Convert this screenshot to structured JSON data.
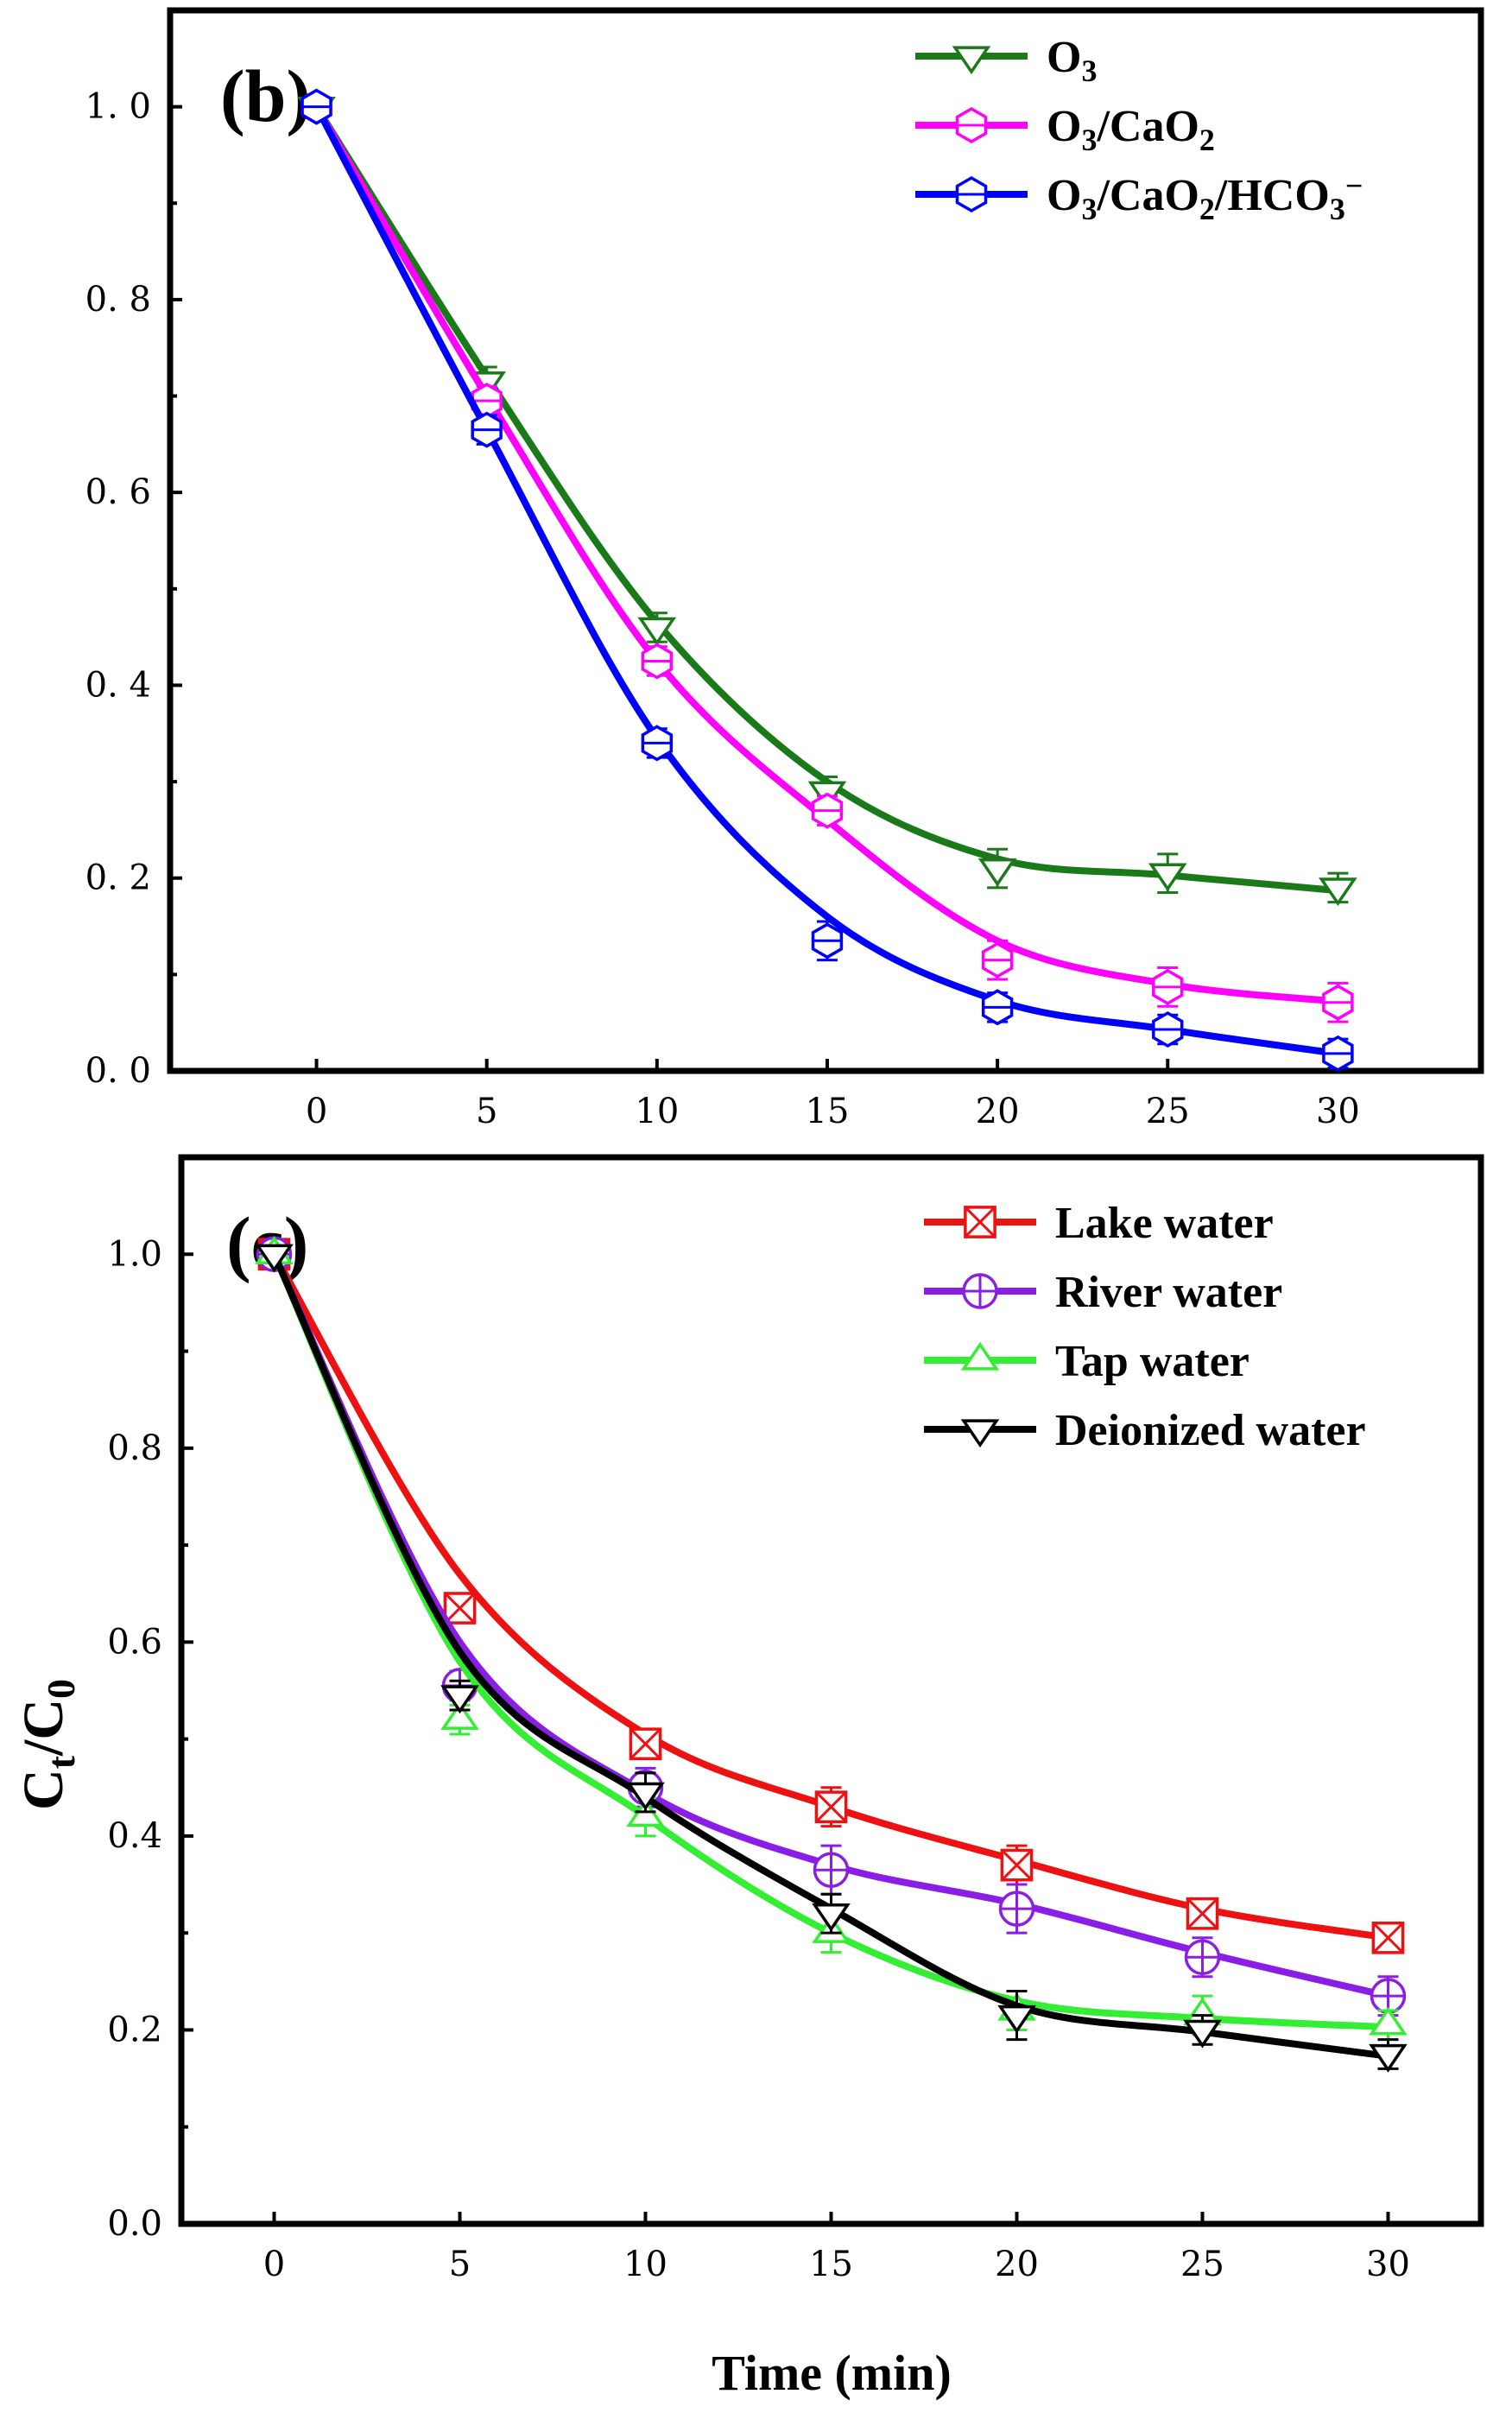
{
  "figure": {
    "xlabel": "Time (min)",
    "ylabel_main": "C",
    "ylabel_sub1": "t",
    "ylabel_slash": "/C",
    "ylabel_sub2": "0"
  },
  "chart_data": [
    {
      "type": "line",
      "panel_label": "(b)",
      "title": "",
      "xlabel": "",
      "ylabel": "",
      "xlim": [
        -4.3,
        34.2
      ],
      "ylim": [
        0,
        1.0
      ],
      "xticks": [
        0,
        5,
        10,
        15,
        20,
        25,
        30
      ],
      "yticks": [
        0.0,
        0.2,
        0.4,
        0.6,
        0.8,
        1.0
      ],
      "ytick_labels": [
        "0. 0",
        "0. 2",
        "0. 4",
        "0. 6",
        "0. 8",
        "1. 0"
      ],
      "grid": false,
      "legend": "top-right",
      "x": [
        0,
        5,
        10,
        15,
        20,
        25,
        30
      ],
      "series": [
        {
          "name": "O3",
          "legend": {
            "main": "O",
            "sub": "3"
          },
          "color": "#1a7a1a",
          "marker": "triangle-down",
          "values": [
            1.0,
            0.715,
            0.46,
            0.29,
            0.21,
            0.205,
            0.19
          ],
          "errors": [
            0.0,
            0.015,
            0.015,
            0.015,
            0.02,
            0.02,
            0.015
          ],
          "curve": [
            1.0,
            0.72,
            0.465,
            0.3,
            0.22,
            0.203,
            0.187
          ]
        },
        {
          "name": "O3/CaO2",
          "legend": {
            "main": "O",
            "sub": "3",
            "mid": "/CaO",
            "sub2": "2"
          },
          "color": "#ff00ff",
          "marker": "hexagon",
          "values": [
            1.0,
            0.695,
            0.425,
            0.27,
            0.115,
            0.087,
            0.071
          ],
          "errors": [
            0.0,
            0.015,
            0.015,
            0.015,
            0.02,
            0.02,
            0.02
          ],
          "curve": [
            1.0,
            0.7,
            0.425,
            0.26,
            0.135,
            0.09,
            0.072
          ]
        },
        {
          "name": "O3/CaO2/HCO3−",
          "legend": {
            "main": "O",
            "sub": "3",
            "mid": "/CaO",
            "sub2": "2",
            "mid2": "/HCO",
            "sub3": "3",
            "sup": "−"
          },
          "color": "#0000ff",
          "marker": "hexagon",
          "values": [
            1.0,
            0.665,
            0.34,
            0.135,
            0.066,
            0.043,
            0.018
          ],
          "errors": [
            0.0,
            0.015,
            0.015,
            0.02,
            0.015,
            0.015,
            0.015
          ],
          "curve": [
            1.0,
            0.665,
            0.345,
            0.16,
            0.073,
            0.043,
            0.018
          ]
        }
      ]
    },
    {
      "type": "line",
      "panel_label": "(c)",
      "title": "",
      "xlabel": "Time (min)",
      "ylabel": "Ct/C0",
      "xlim": [
        -2.5,
        32.5
      ],
      "ylim": [
        0,
        1.0
      ],
      "xticks": [
        0,
        5,
        10,
        15,
        20,
        25,
        30
      ],
      "yticks": [
        0.0,
        0.2,
        0.4,
        0.6,
        0.8,
        1.0
      ],
      "ytick_labels": [
        "0.0",
        "0.2",
        "0.4",
        "0.6",
        "0.8",
        "1.0"
      ],
      "grid": false,
      "legend": "top-right",
      "x": [
        0,
        5,
        10,
        15,
        20,
        25,
        30
      ],
      "series": [
        {
          "name": "Lake water",
          "color": "#ee1111",
          "marker": "square-x",
          "values": [
            1.0,
            0.635,
            0.495,
            0.43,
            0.37,
            0.32,
            0.295
          ],
          "errors": [
            0.0,
            0.015,
            0.015,
            0.02,
            0.02,
            0.015,
            0.01
          ],
          "curve": [
            1.0,
            0.67,
            0.505,
            0.43,
            0.375,
            0.325,
            0.295
          ]
        },
        {
          "name": "River water",
          "color": "#8a1ee6",
          "marker": "circle-plus",
          "values": [
            1.0,
            0.555,
            0.45,
            0.365,
            0.325,
            0.275,
            0.235
          ],
          "errors": [
            0.0,
            0.015,
            0.02,
            0.025,
            0.025,
            0.02,
            0.02
          ],
          "curve": [
            1.0,
            0.6,
            0.445,
            0.37,
            0.33,
            0.28,
            0.235
          ]
        },
        {
          "name": "Tap water",
          "color": "#33ee33",
          "marker": "triangle-up",
          "values": [
            1.0,
            0.52,
            0.42,
            0.3,
            0.22,
            0.215,
            0.205
          ],
          "errors": [
            0.0,
            0.015,
            0.02,
            0.02,
            0.02,
            0.02,
            0.015
          ],
          "curve": [
            1.0,
            0.58,
            0.42,
            0.3,
            0.23,
            0.212,
            0.203
          ]
        },
        {
          "name": "Deionized water",
          "color": "#000000",
          "marker": "triangle-down",
          "values": [
            1.0,
            0.545,
            0.445,
            0.32,
            0.215,
            0.2,
            0.175
          ],
          "errors": [
            0.0,
            0.015,
            0.02,
            0.02,
            0.025,
            0.015,
            0.015
          ],
          "curve": [
            1.0,
            0.59,
            0.44,
            0.325,
            0.225,
            0.198,
            0.173
          ]
        }
      ]
    }
  ]
}
